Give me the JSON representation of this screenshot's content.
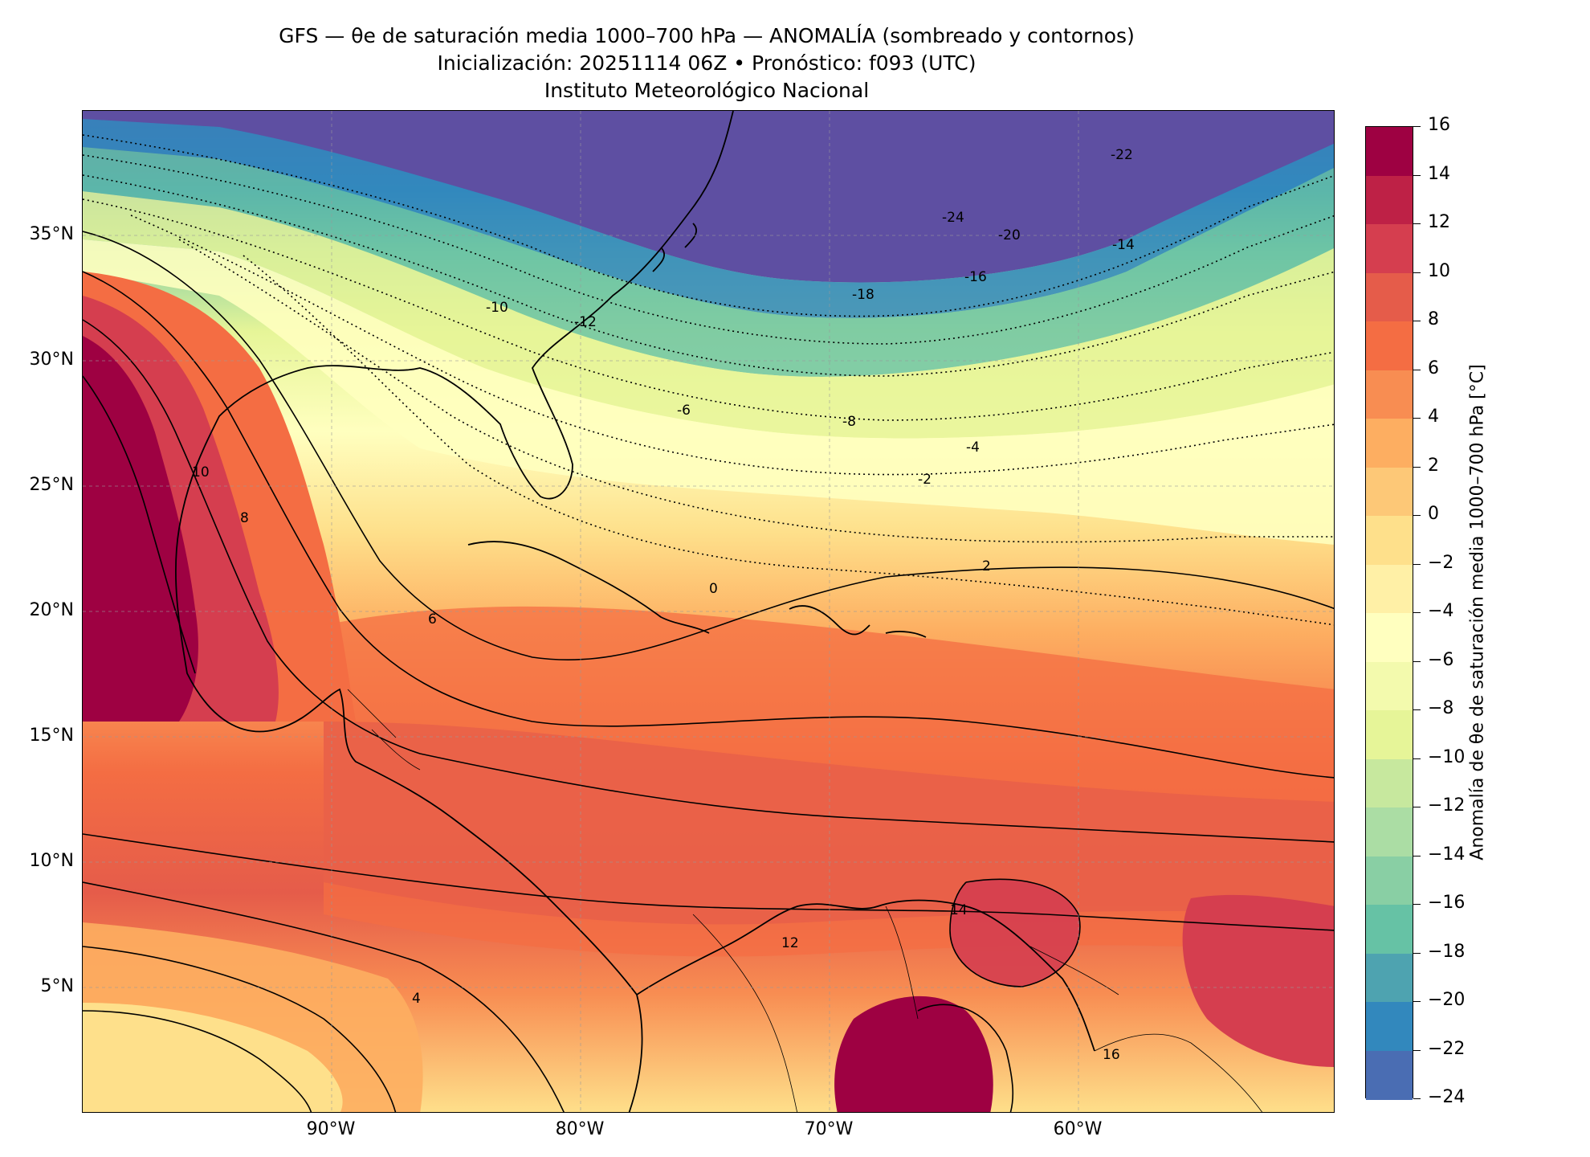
{
  "title": {
    "line1": "GFS — θe de saturación media 1000–700 hPa — ANOMALÍA (sombreado y contornos)",
    "line2": "Inicialización: 20251114 06Z   •   Pronóstico: f093 (UTC)",
    "line3": "Instituto Meteorológico Nacional"
  },
  "map": {
    "lat_ticks": [
      "35°N",
      "30°N",
      "25°N",
      "20°N",
      "15°N",
      "10°N",
      "5°N"
    ],
    "lon_ticks": [
      "90°W",
      "80°W",
      "70°W",
      "60°W"
    ],
    "contour_labels": [
      "-24",
      "-22",
      "-20",
      "-18",
      "-16",
      "-14",
      "-12",
      "-10",
      "-8",
      "-6",
      "-4",
      "-2",
      "0",
      "2",
      "4",
      "6",
      "8",
      "10",
      "12",
      "14",
      "16"
    ]
  },
  "colorbar": {
    "label": "Anomalía de θe de saturación media 1000–700 hPa [°C]",
    "ticks": [
      "16",
      "14",
      "12",
      "10",
      "8",
      "6",
      "4",
      "2",
      "0",
      "−2",
      "−4",
      "−6",
      "−8",
      "−10",
      "−12",
      "−14",
      "−16",
      "−18",
      "−20",
      "−22",
      "−24"
    ],
    "colors": [
      "#9e0142",
      "#be2146",
      "#d53e4f",
      "#e55c4a",
      "#f46d43",
      "#f88d52",
      "#fdae61",
      "#fdc877",
      "#fee08b",
      "#fff0a6",
      "#ffffbf",
      "#f3faad",
      "#e6f598",
      "#c7e89e",
      "#abdda4",
      "#89cfa4",
      "#66c2a5",
      "#4ea3b0",
      "#3288bd",
      "#4a6db3",
      "#5e4fa2"
    ]
  }
}
